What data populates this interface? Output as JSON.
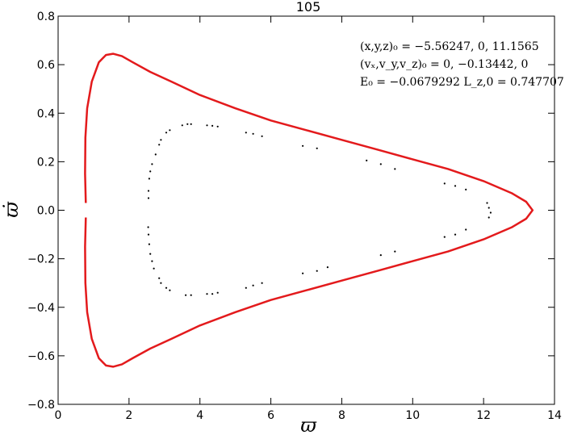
{
  "chart_data": {
    "type": "scatter",
    "title": "105",
    "xlabel": "ϖ",
    "ylabel": "ϖ̇",
    "xlim": [
      0,
      14
    ],
    "ylim": [
      -0.8,
      0.8
    ],
    "xticks": [
      0,
      2,
      4,
      6,
      8,
      10,
      12,
      14
    ],
    "xtick_labels": [
      "0",
      "2",
      "4",
      "6",
      "8",
      "10",
      "12",
      "14"
    ],
    "yticks": [
      -0.8,
      -0.6,
      -0.4,
      -0.2,
      0.0,
      0.2,
      0.4,
      0.6,
      0.8
    ],
    "ytick_labels": [
      "−0.8",
      "−0.6",
      "−0.4",
      "−0.2",
      "0.0",
      "0.2",
      "0.4",
      "0.6",
      "0.8"
    ],
    "grid": false,
    "annotations": [
      "(x,y,z)₀ = −5.56247, 0, 11.1565",
      "(vₓ,v_y,v_z)₀ = 0, −0.13442, 0",
      "E₀ = −0.0679292  L_z,0 = 0.747707"
    ],
    "series": [
      {
        "kind": "curve",
        "color": "#e31a1c",
        "points": [
          [
            0.78,
            0.03
          ],
          [
            0.76,
            0.15
          ],
          [
            0.77,
            0.3
          ],
          [
            0.82,
            0.42
          ],
          [
            0.95,
            0.53
          ],
          [
            1.15,
            0.61
          ],
          [
            1.35,
            0.64
          ],
          [
            1.55,
            0.645
          ],
          [
            1.8,
            0.635
          ],
          [
            2.1,
            0.61
          ],
          [
            2.6,
            0.57
          ],
          [
            3.2,
            0.53
          ],
          [
            4.0,
            0.475
          ],
          [
            5.0,
            0.42
          ],
          [
            6.0,
            0.37
          ],
          [
            7.0,
            0.33
          ],
          [
            8.0,
            0.29
          ],
          [
            9.0,
            0.25
          ],
          [
            10.0,
            0.21
          ],
          [
            11.0,
            0.17
          ],
          [
            12.0,
            0.12
          ],
          [
            12.8,
            0.07
          ],
          [
            13.2,
            0.035
          ],
          [
            13.38,
            0.0
          ],
          [
            13.2,
            -0.035
          ],
          [
            12.8,
            -0.07
          ],
          [
            12.0,
            -0.12
          ],
          [
            11.0,
            -0.17
          ],
          [
            10.0,
            -0.21
          ],
          [
            9.0,
            -0.25
          ],
          [
            8.0,
            -0.29
          ],
          [
            7.0,
            -0.33
          ],
          [
            6.0,
            -0.37
          ],
          [
            5.0,
            -0.42
          ],
          [
            4.0,
            -0.475
          ],
          [
            3.2,
            -0.53
          ],
          [
            2.6,
            -0.57
          ],
          [
            2.1,
            -0.61
          ],
          [
            1.8,
            -0.635
          ],
          [
            1.55,
            -0.645
          ],
          [
            1.35,
            -0.64
          ],
          [
            1.15,
            -0.61
          ],
          [
            0.95,
            -0.53
          ],
          [
            0.82,
            -0.42
          ],
          [
            0.77,
            -0.3
          ],
          [
            0.76,
            -0.15
          ],
          [
            0.78,
            -0.03
          ]
        ]
      },
      {
        "kind": "points",
        "color": "#000000",
        "points": [
          [
            2.55,
            0.05
          ],
          [
            2.55,
            0.08
          ],
          [
            2.57,
            0.13
          ],
          [
            2.6,
            0.16
          ],
          [
            2.65,
            0.19
          ],
          [
            2.75,
            0.23
          ],
          [
            2.85,
            0.27
          ],
          [
            2.9,
            0.29
          ],
          [
            3.05,
            0.32
          ],
          [
            3.15,
            0.33
          ],
          [
            3.5,
            0.35
          ],
          [
            3.65,
            0.355
          ],
          [
            3.75,
            0.355
          ],
          [
            4.2,
            0.35
          ],
          [
            4.35,
            0.348
          ],
          [
            4.5,
            0.345
          ],
          [
            5.3,
            0.32
          ],
          [
            5.5,
            0.315
          ],
          [
            5.75,
            0.305
          ],
          [
            6.9,
            0.265
          ],
          [
            7.3,
            0.255
          ],
          [
            8.7,
            0.205
          ],
          [
            9.1,
            0.19
          ],
          [
            9.5,
            0.17
          ],
          [
            10.9,
            0.11
          ],
          [
            11.2,
            0.1
          ],
          [
            11.5,
            0.085
          ],
          [
            12.1,
            0.03
          ],
          [
            12.15,
            0.01
          ],
          [
            12.2,
            -0.01
          ],
          [
            12.15,
            -0.03
          ],
          [
            11.5,
            -0.08
          ],
          [
            11.2,
            -0.1
          ],
          [
            10.9,
            -0.11
          ],
          [
            9.5,
            -0.17
          ],
          [
            9.1,
            -0.185
          ],
          [
            7.6,
            -0.235
          ],
          [
            7.3,
            -0.25
          ],
          [
            6.9,
            -0.26
          ],
          [
            5.75,
            -0.3
          ],
          [
            5.5,
            -0.31
          ],
          [
            5.3,
            -0.32
          ],
          [
            4.5,
            -0.34
          ],
          [
            4.35,
            -0.345
          ],
          [
            4.2,
            -0.345
          ],
          [
            3.75,
            -0.35
          ],
          [
            3.6,
            -0.35
          ],
          [
            3.15,
            -0.33
          ],
          [
            3.05,
            -0.32
          ],
          [
            2.9,
            -0.3
          ],
          [
            2.85,
            -0.28
          ],
          [
            2.7,
            -0.24
          ],
          [
            2.65,
            -0.21
          ],
          [
            2.6,
            -0.18
          ],
          [
            2.57,
            -0.14
          ],
          [
            2.55,
            -0.1
          ],
          [
            2.54,
            -0.07
          ]
        ]
      }
    ]
  }
}
